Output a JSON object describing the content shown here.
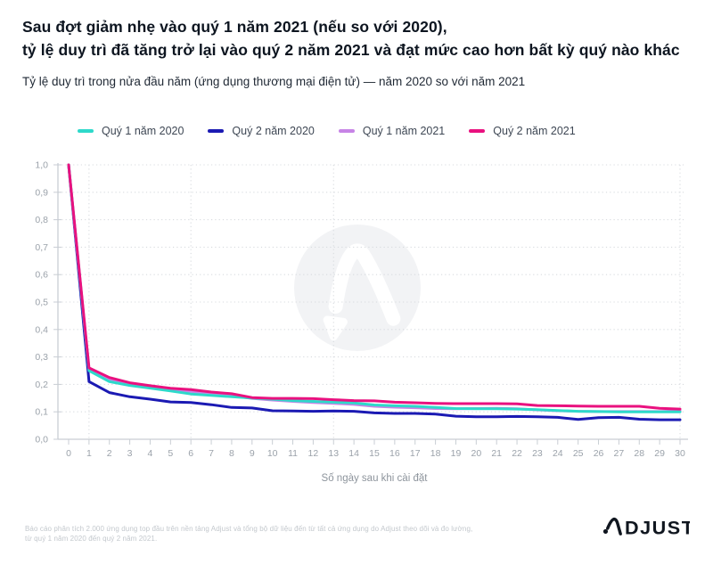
{
  "header": {
    "title_line1": "Sau đợt giảm nhẹ vào quý 1 năm 2021 (nếu so với 2020),",
    "title_line2": "tỷ lệ duy trì đã tăng trở lại vào quý 2 năm 2021 và đạt mức cao hơn bất kỳ quý nào khác",
    "subtitle": "Tỷ lệ duy trì trong nửa đầu năm (ứng dụng thương mại điện tử) — năm 2020 so với năm 2021"
  },
  "chart_data": {
    "type": "line",
    "title": "Tỷ lệ duy trì trong nửa đầu năm (ứng dụng thương mại điện tử) — năm 2020 so với năm 2021",
    "xlabel": "Số ngày sau khi cài đặt",
    "ylabel": "",
    "x": [
      0,
      1,
      2,
      3,
      4,
      5,
      6,
      7,
      8,
      9,
      10,
      11,
      12,
      13,
      14,
      15,
      16,
      17,
      18,
      19,
      20,
      21,
      22,
      23,
      24,
      25,
      26,
      27,
      28,
      29,
      30
    ],
    "xtick_labels": [
      "0",
      "1",
      "2",
      "3",
      "4",
      "5",
      "6",
      "7",
      "8",
      "9",
      "10",
      "11",
      "12",
      "13",
      "14",
      "15",
      "16",
      "17",
      "18",
      "19",
      "20",
      "21",
      "22",
      "23",
      "24",
      "25",
      "26",
      "27",
      "28",
      "29",
      "30"
    ],
    "ylim": [
      0.0,
      1.0
    ],
    "ytick_labels": [
      "0,0",
      "0,1",
      "0,2",
      "0,3",
      "0,4",
      "0,5",
      "0,6",
      "0,7",
      "0,8",
      "0,9",
      "1,0"
    ],
    "grid": "dotted horizontal every 0.1; dotted vertical at days 1, 6, 13, 30",
    "vertical_gridlines_at": [
      1,
      6,
      13,
      30
    ],
    "legend_position": "top-left",
    "series": [
      {
        "name": "Quý 1 năm 2020",
        "color": "#2ED9CA",
        "values": [
          1.0,
          0.25,
          0.21,
          0.196,
          0.186,
          0.176,
          0.165,
          0.16,
          0.155,
          0.15,
          0.146,
          0.141,
          0.138,
          0.135,
          0.132,
          0.125,
          0.122,
          0.12,
          0.116,
          0.112,
          0.111,
          0.111,
          0.11,
          0.108,
          0.105,
          0.102,
          0.101,
          0.1,
          0.1,
          0.1,
          0.1
        ]
      },
      {
        "name": "Quý 2 năm 2020",
        "color": "#1B1AB3",
        "values": [
          1.0,
          0.21,
          0.17,
          0.155,
          0.146,
          0.136,
          0.134,
          0.126,
          0.116,
          0.114,
          0.104,
          0.103,
          0.102,
          0.103,
          0.102,
          0.096,
          0.094,
          0.094,
          0.092,
          0.084,
          0.082,
          0.082,
          0.083,
          0.082,
          0.08,
          0.072,
          0.079,
          0.08,
          0.073,
          0.071,
          0.071
        ]
      },
      {
        "name": "Quý 1 năm 2021",
        "color": "#C784E6",
        "values": [
          1.0,
          0.251,
          0.216,
          0.2,
          0.19,
          0.181,
          0.174,
          0.166,
          0.158,
          0.149,
          0.143,
          0.138,
          0.134,
          0.131,
          0.127,
          0.12,
          0.117,
          0.115,
          0.112,
          0.111,
          0.112,
          0.113,
          0.111,
          0.107,
          0.104,
          0.102,
          0.101,
          0.101,
          0.101,
          0.101,
          0.104
        ]
      },
      {
        "name": "Quý 2 năm 2021",
        "color": "#E9117F",
        "values": [
          1.0,
          0.26,
          0.225,
          0.206,
          0.195,
          0.186,
          0.181,
          0.172,
          0.166,
          0.152,
          0.149,
          0.149,
          0.148,
          0.144,
          0.141,
          0.14,
          0.135,
          0.133,
          0.131,
          0.13,
          0.13,
          0.13,
          0.129,
          0.123,
          0.122,
          0.121,
          0.12,
          0.12,
          0.12,
          0.113,
          0.11
        ]
      }
    ],
    "watermark": "adjust-logo"
  },
  "footer": {
    "note_line1": "Báo cáo phân tích 2.000 ứng dụng top đầu trên nền tảng Adjust và tổng bộ dữ liệu đến từ tất cả ứng dụng do Adjust theo dõi và đo lường,",
    "note_line2": "từ quý 1 năm 2020 đến quý 2 năm 2021.",
    "logo_text": "ADJUST"
  },
  "colors": {
    "title": "#0d1520",
    "axis_line": "#c9ced4",
    "tick_label": "#9ba2aa",
    "gridline": "#d8dbdf",
    "footer_text": "#c3c8cd",
    "logo": "#10161f",
    "watermark_fill": "#f2f3f5"
  }
}
